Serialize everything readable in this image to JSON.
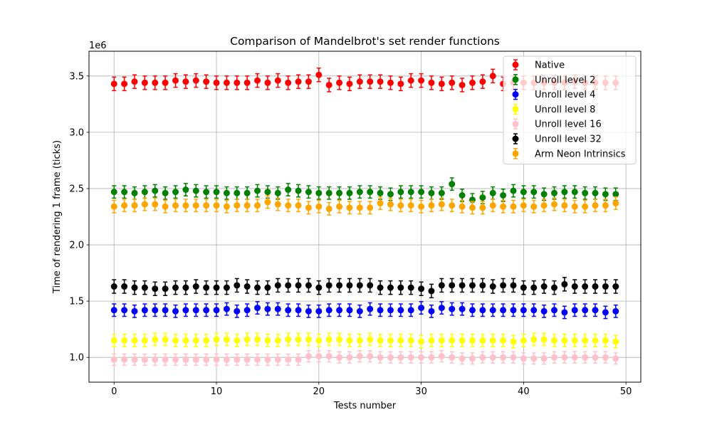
{
  "chart_data": {
    "type": "scatter",
    "title": "Comparison of Mandelbrot's set render functions",
    "xlabel": "Tests number",
    "ylabel": "Time of rendering 1 frame (ticks)",
    "y_multiplier_label": "1e6",
    "xlim": [
      -2.45,
      51.45
    ],
    "ylim": [
      780000,
      3720000
    ],
    "x_ticks": [
      0,
      10,
      20,
      30,
      40,
      50
    ],
    "x_tick_labels": [
      "0",
      "10",
      "20",
      "30",
      "40",
      "50"
    ],
    "y_ticks": [
      1000000,
      1500000,
      2000000,
      2500000,
      3000000,
      3500000
    ],
    "y_tick_labels": [
      "1.0",
      "1.5",
      "2.0",
      "2.5",
      "3.0",
      "3.5"
    ],
    "grid": true,
    "legend_position": "upper right",
    "series": [
      {
        "name": "Native",
        "color": "#ff0000",
        "values": [
          3430000,
          3430000,
          3450000,
          3440000,
          3440000,
          3440000,
          3460000,
          3450000,
          3460000,
          3450000,
          3440000,
          3440000,
          3440000,
          3440000,
          3460000,
          3440000,
          3460000,
          3440000,
          3450000,
          3450000,
          3510000,
          3420000,
          3440000,
          3430000,
          3450000,
          3450000,
          3450000,
          3440000,
          3430000,
          3460000,
          3460000,
          3440000,
          3430000,
          3440000,
          3420000,
          3440000,
          3450000,
          3500000,
          3430000,
          3440000,
          3440000,
          3440000,
          3440000,
          3440000,
          3440000,
          3450000,
          3440000,
          3440000,
          3440000,
          3440000
        ],
        "error": 60000
      },
      {
        "name": "Unroll level 2",
        "color": "#008000",
        "values": [
          2470000,
          2470000,
          2460000,
          2470000,
          2480000,
          2460000,
          2470000,
          2490000,
          2480000,
          2470000,
          2470000,
          2460000,
          2460000,
          2460000,
          2480000,
          2470000,
          2460000,
          2490000,
          2480000,
          2470000,
          2460000,
          2460000,
          2460000,
          2460000,
          2470000,
          2470000,
          2460000,
          2450000,
          2470000,
          2470000,
          2470000,
          2460000,
          2460000,
          2540000,
          2440000,
          2400000,
          2420000,
          2460000,
          2440000,
          2480000,
          2470000,
          2470000,
          2450000,
          2460000,
          2470000,
          2470000,
          2460000,
          2460000,
          2450000,
          2450000
        ],
        "error": 55000
      },
      {
        "name": "Unroll level 4",
        "color": "#0000ff",
        "values": [
          1420000,
          1420000,
          1410000,
          1420000,
          1420000,
          1420000,
          1410000,
          1420000,
          1420000,
          1420000,
          1420000,
          1430000,
          1410000,
          1420000,
          1440000,
          1430000,
          1430000,
          1420000,
          1420000,
          1410000,
          1410000,
          1420000,
          1420000,
          1420000,
          1410000,
          1430000,
          1420000,
          1420000,
          1420000,
          1420000,
          1440000,
          1410000,
          1440000,
          1430000,
          1430000,
          1420000,
          1420000,
          1420000,
          1420000,
          1420000,
          1420000,
          1420000,
          1410000,
          1420000,
          1400000,
          1420000,
          1420000,
          1420000,
          1400000,
          1410000
        ],
        "error": 55000
      },
      {
        "name": "Unroll level 8",
        "color": "#ffff00",
        "values": [
          1150000,
          1150000,
          1150000,
          1150000,
          1160000,
          1160000,
          1150000,
          1150000,
          1150000,
          1150000,
          1160000,
          1160000,
          1150000,
          1160000,
          1160000,
          1150000,
          1150000,
          1160000,
          1160000,
          1160000,
          1150000,
          1160000,
          1160000,
          1150000,
          1150000,
          1160000,
          1150000,
          1150000,
          1150000,
          1150000,
          1140000,
          1150000,
          1150000,
          1150000,
          1150000,
          1150000,
          1150000,
          1150000,
          1150000,
          1140000,
          1150000,
          1160000,
          1160000,
          1150000,
          1150000,
          1150000,
          1150000,
          1150000,
          1150000,
          1140000
        ],
        "error": 55000
      },
      {
        "name": "Unroll level 16",
        "color": "#ffc0cb",
        "values": [
          980000,
          980000,
          980000,
          980000,
          980000,
          980000,
          980000,
          980000,
          980000,
          980000,
          980000,
          980000,
          980000,
          980000,
          980000,
          980000,
          980000,
          980000,
          980000,
          1010000,
          1010000,
          1010000,
          1000000,
          1000000,
          1010000,
          1010000,
          1000000,
          1000000,
          1000000,
          1000000,
          1000000,
          1000000,
          1010000,
          1000000,
          990000,
          990000,
          1000000,
          1000000,
          1000000,
          1000000,
          990000,
          990000,
          990000,
          1000000,
          1000000,
          1000000,
          1000000,
          1000000,
          1000000,
          990000
        ],
        "error": 50000
      },
      {
        "name": "Unroll level 32",
        "color": "#000000",
        "values": [
          1630000,
          1630000,
          1620000,
          1620000,
          1610000,
          1610000,
          1620000,
          1620000,
          1630000,
          1620000,
          1620000,
          1620000,
          1640000,
          1630000,
          1620000,
          1620000,
          1640000,
          1640000,
          1640000,
          1640000,
          1620000,
          1640000,
          1640000,
          1640000,
          1640000,
          1640000,
          1620000,
          1620000,
          1620000,
          1620000,
          1610000,
          1590000,
          1640000,
          1640000,
          1640000,
          1640000,
          1640000,
          1630000,
          1640000,
          1640000,
          1620000,
          1620000,
          1630000,
          1620000,
          1650000,
          1630000,
          1630000,
          1630000,
          1630000,
          1630000
        ],
        "error": 60000
      },
      {
        "name": "Arm Neon Intrinsics",
        "color": "#ffa500",
        "values": [
          2340000,
          2350000,
          2350000,
          2360000,
          2360000,
          2340000,
          2350000,
          2350000,
          2350000,
          2350000,
          2350000,
          2340000,
          2350000,
          2350000,
          2350000,
          2380000,
          2360000,
          2350000,
          2350000,
          2330000,
          2340000,
          2320000,
          2340000,
          2330000,
          2330000,
          2330000,
          2370000,
          2360000,
          2350000,
          2350000,
          2340000,
          2350000,
          2360000,
          2350000,
          2340000,
          2330000,
          2330000,
          2350000,
          2340000,
          2340000,
          2350000,
          2340000,
          2350000,
          2360000,
          2350000,
          2340000,
          2340000,
          2350000,
          2350000,
          2370000
        ],
        "error": 55000
      }
    ]
  }
}
